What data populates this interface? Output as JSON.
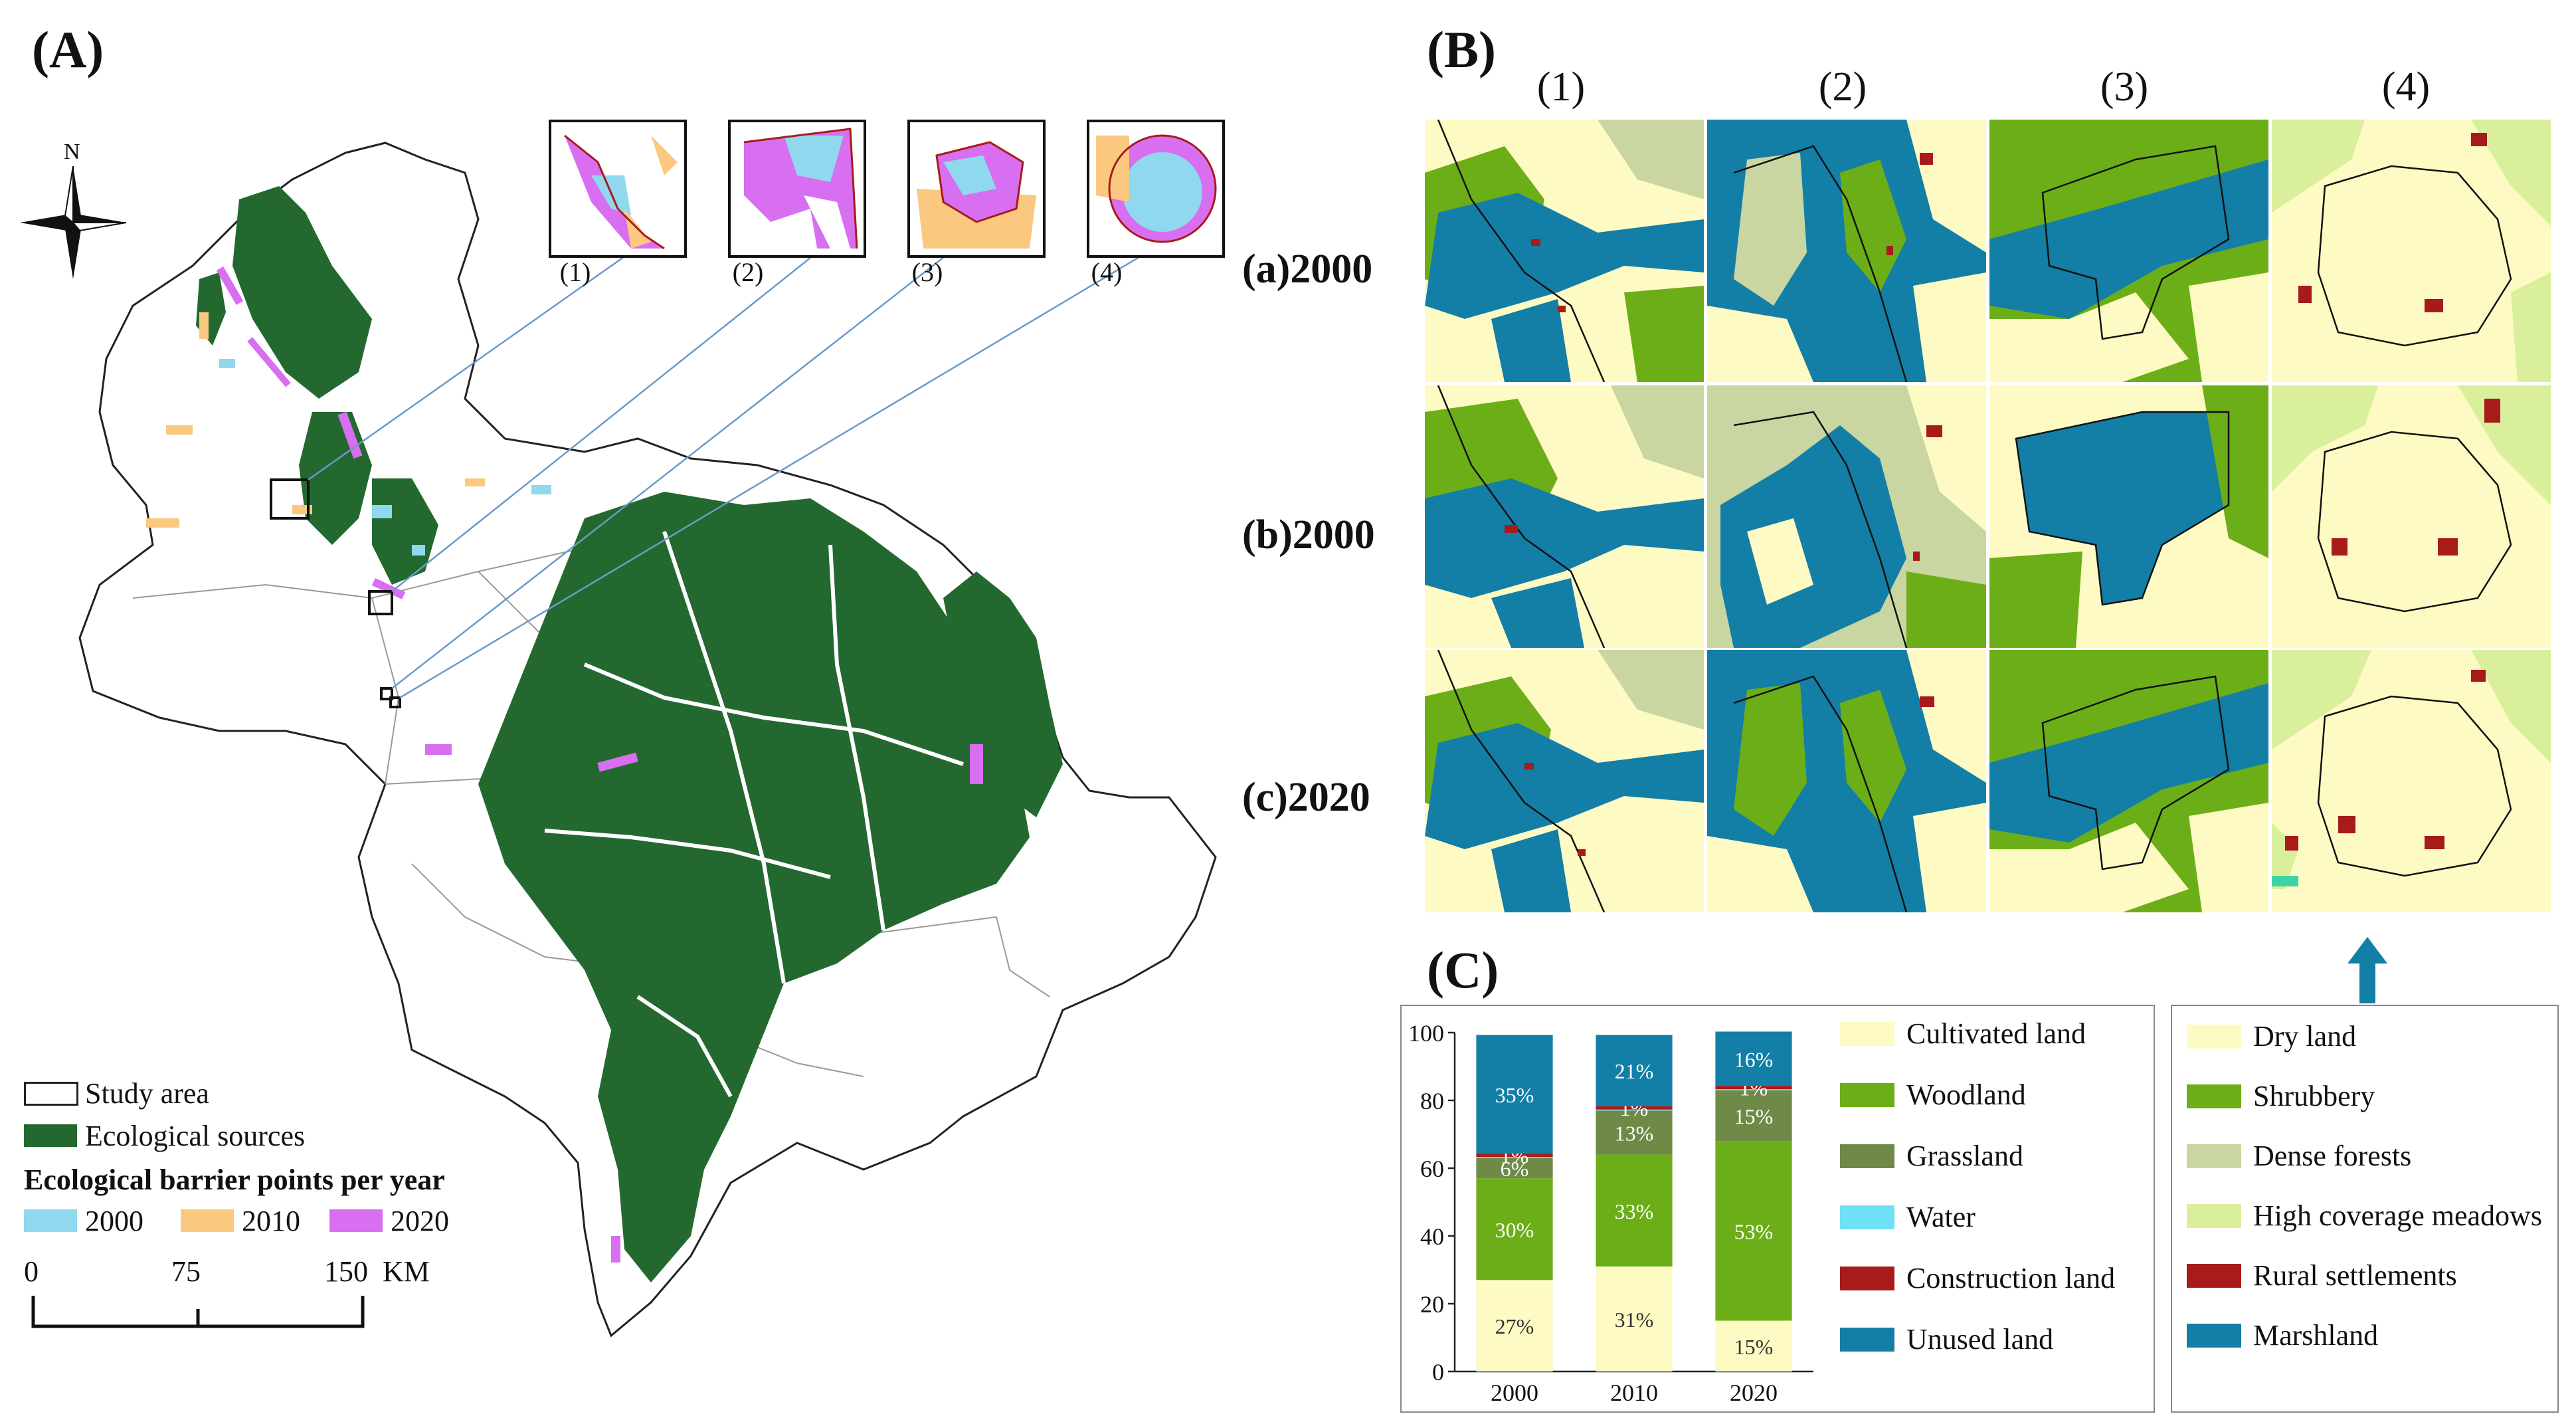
{
  "panels": {
    "A": "(A)",
    "B": "(B)",
    "C": "(C)"
  },
  "north": "N",
  "legend_a": {
    "study_area": "Study area",
    "ecological_sources": "Ecological sources",
    "barrier_title": "Ecological barrier points per year",
    "years": [
      {
        "label": "2000",
        "color": "#8fd8ee"
      },
      {
        "label": "2010",
        "color": "#fbc880"
      },
      {
        "label": "2020",
        "color": "#d86ef0"
      }
    ],
    "source_color": "#23692f",
    "scale": {
      "t0": "0",
      "t1": "75",
      "t2": "150",
      "unit": "KM"
    }
  },
  "insets": [
    "(1)",
    "(2)",
    "(3)",
    "(4)"
  ],
  "grid": {
    "cols": [
      "(1)",
      "(2)",
      "(3)",
      "(4)"
    ],
    "rows": [
      "(a)2000",
      "(b)2000",
      "(c)2020"
    ]
  },
  "chart_data": {
    "type": "bar",
    "stacked": true,
    "categories": [
      "2000",
      "2010",
      "2020"
    ],
    "ylim": [
      0,
      100
    ],
    "yticks": [
      "0",
      "20",
      "40",
      "60",
      "80",
      "100"
    ],
    "series": [
      {
        "name": "Cultivated land",
        "color": "#fdfac3",
        "values": [
          27,
          31,
          15
        ],
        "labels": [
          "27%",
          "31%",
          "15%"
        ]
      },
      {
        "name": "Woodland",
        "color": "#6cae17",
        "values": [
          30,
          33,
          53
        ],
        "labels": [
          "30%",
          "33%",
          "53%"
        ]
      },
      {
        "name": "Grassland",
        "color": "#6e8a46",
        "values": [
          6,
          13,
          15
        ],
        "labels": [
          "6%",
          "13%",
          "15%"
        ]
      },
      {
        "name": "Water",
        "color": "#6fe0f5",
        "values": [
          0.3,
          0.3,
          0.3
        ],
        "labels": [
          "",
          "",
          ""
        ]
      },
      {
        "name": "Construction land",
        "color": "#a81b1b",
        "values": [
          1,
          1,
          1
        ],
        "labels": [
          "1%",
          "1%",
          "1%"
        ]
      },
      {
        "name": "Unused land",
        "color": "#137ea6",
        "values": [
          35,
          21,
          16
        ],
        "labels": [
          "35%",
          "21%",
          "16%"
        ]
      }
    ]
  },
  "legend_c2": [
    {
      "name": "Dry land",
      "color": "#fdfac3"
    },
    {
      "name": "Shrubbery",
      "color": "#6cae17"
    },
    {
      "name": "Dense forests",
      "color": "#c9d6a1"
    },
    {
      "name": "High coverage meadows",
      "color": "#d9ef9c"
    },
    {
      "name": "Rural settlements",
      "color": "#a81b1b"
    },
    {
      "name": "Marshland",
      "color": "#137ea6"
    }
  ]
}
